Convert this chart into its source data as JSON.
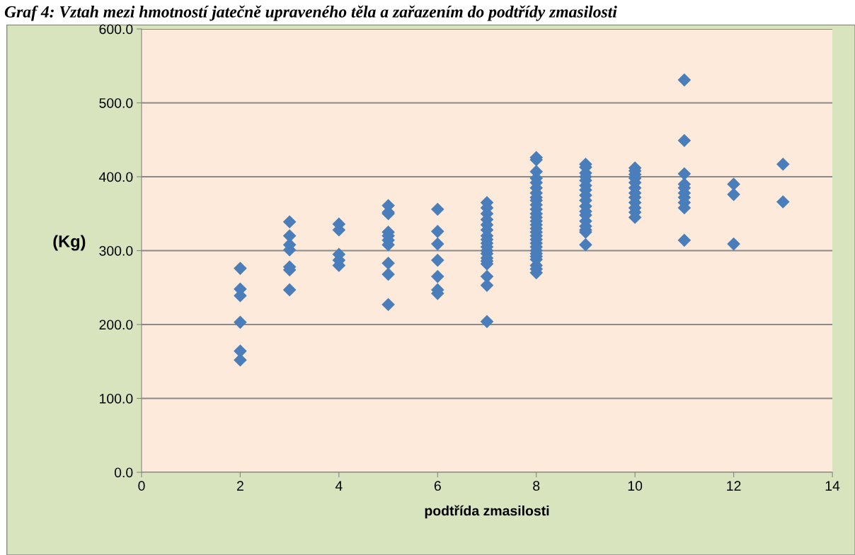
{
  "chart_data": {
    "type": "scatter",
    "title": "Graf 4: Vztah mezi hmotností jatečně upraveného těla a zařazením do podtřídy zmasilosti",
    "xlabel": "podtřída zmasilosti",
    "ylabel": "(Kg)",
    "xlim": [
      0,
      14
    ],
    "xticks": [
      0,
      2,
      4,
      6,
      8,
      10,
      12,
      14
    ],
    "ylim": [
      0,
      600
    ],
    "yticks": [
      {
        "value": 0,
        "label": "0.0"
      },
      {
        "value": 100,
        "label": "100.0"
      },
      {
        "value": 200,
        "label": "200.0"
      },
      {
        "value": 300,
        "label": "300.0"
      },
      {
        "value": 400,
        "label": "400.0"
      },
      {
        "value": 500,
        "label": "500.0"
      },
      {
        "value": 600,
        "label": "600.0"
      }
    ],
    "grid": "y",
    "marker": "diamond",
    "legend": false,
    "series": [
      {
        "color": "#4a7ebb",
        "x": [
          2,
          2,
          2,
          2,
          2,
          2,
          3,
          3,
          3,
          3,
          3,
          3,
          3,
          4,
          4,
          4,
          4,
          4,
          5,
          5,
          5,
          5,
          5,
          5,
          5,
          5,
          5,
          5,
          6,
          6,
          6,
          6,
          6,
          6,
          6,
          7,
          7,
          7,
          7,
          7,
          7,
          7,
          7,
          7,
          7,
          7,
          7,
          7,
          7,
          7,
          7,
          7,
          7,
          8,
          8,
          8,
          8,
          8,
          8,
          8,
          8,
          8,
          8,
          8,
          8,
          8,
          8,
          8,
          8,
          8,
          8,
          8,
          8,
          8,
          8,
          8,
          8,
          8,
          8,
          8,
          8,
          9,
          9,
          9,
          9,
          9,
          9,
          9,
          9,
          9,
          9,
          9,
          9,
          9,
          9,
          9,
          9,
          9,
          10,
          10,
          10,
          10,
          10,
          10,
          10,
          10,
          10,
          10,
          10,
          10,
          11,
          11,
          11,
          11,
          11,
          11,
          11,
          11,
          11,
          11,
          12,
          12,
          12,
          13,
          13
        ],
        "values": [
          276,
          248,
          239,
          203,
          164,
          152,
          339,
          320,
          308,
          301,
          278,
          274,
          247,
          336,
          328,
          295,
          287,
          280,
          361,
          352,
          350,
          325,
          320,
          314,
          308,
          283,
          268,
          227,
          356,
          326,
          309,
          287,
          265,
          247,
          242,
          365,
          358,
          350,
          342,
          335,
          328,
          320,
          315,
          310,
          305,
          300,
          296,
          290,
          286,
          282,
          265,
          253,
          204,
          426,
          423,
          407,
          398,
          392,
          385,
          378,
          372,
          368,
          362,
          356,
          350,
          345,
          340,
          335,
          330,
          325,
          320,
          315,
          310,
          305,
          300,
          296,
          292,
          288,
          280,
          275,
          270,
          417,
          413,
          405,
          400,
          395,
          388,
          382,
          375,
          368,
          360,
          353,
          348,
          340,
          333,
          328,
          325,
          308,
          412,
          408,
          403,
          398,
          392,
          385,
          378,
          372,
          365,
          358,
          352,
          345,
          531,
          449,
          404,
          390,
          385,
          378,
          372,
          365,
          358,
          314,
          390,
          376,
          309,
          417,
          366
        ]
      }
    ]
  }
}
